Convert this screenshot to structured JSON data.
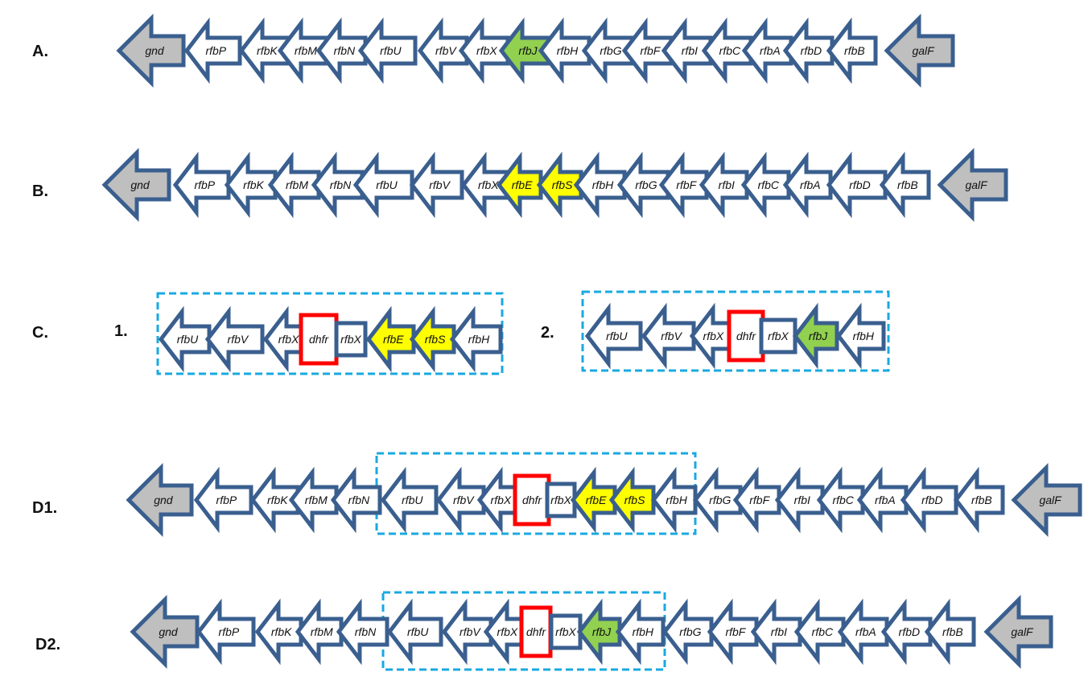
{
  "colors": {
    "outline": "#3a5f8f",
    "white": "#ffffff",
    "gray": "#bfbfbf",
    "green": "#92d050",
    "yellow": "#ffff00",
    "red": "#ff0000",
    "dashed": "#19a9e0"
  },
  "rows": [
    {
      "id": "A",
      "label": "A.",
      "genes": [
        {
          "name": "gnd",
          "fill": "gray"
        },
        {
          "name": "rfbP",
          "fill": "white"
        },
        {
          "name": "rfbK",
          "fill": "white"
        },
        {
          "name": "rfbM",
          "fill": "white"
        },
        {
          "name": "rfbN",
          "fill": "white"
        },
        {
          "name": "rfbU",
          "fill": "white"
        },
        {
          "name": "rfbV",
          "fill": "white"
        },
        {
          "name": "rfbX",
          "fill": "white"
        },
        {
          "name": "rfbJ",
          "fill": "green"
        },
        {
          "name": "rfbH",
          "fill": "white"
        },
        {
          "name": "rfbG",
          "fill": "white"
        },
        {
          "name": "rfbF",
          "fill": "white"
        },
        {
          "name": "rfbI",
          "fill": "white"
        },
        {
          "name": "rfbC",
          "fill": "white"
        },
        {
          "name": "rfbA",
          "fill": "white"
        },
        {
          "name": "rfbD",
          "fill": "white"
        },
        {
          "name": "rfbB",
          "fill": "white"
        },
        {
          "name": "galF",
          "fill": "gray"
        }
      ]
    },
    {
      "id": "B",
      "label": "B.",
      "genes": [
        {
          "name": "gnd",
          "fill": "gray"
        },
        {
          "name": "rfbP",
          "fill": "white"
        },
        {
          "name": "rfbK",
          "fill": "white"
        },
        {
          "name": "rfbM",
          "fill": "white"
        },
        {
          "name": "rfbN",
          "fill": "white"
        },
        {
          "name": "rfbU",
          "fill": "white"
        },
        {
          "name": "rfbV",
          "fill": "white"
        },
        {
          "name": "rfbX",
          "fill": "white"
        },
        {
          "name": "rfbE",
          "fill": "yellow"
        },
        {
          "name": "rfbS",
          "fill": "yellow"
        },
        {
          "name": "rfbH",
          "fill": "white"
        },
        {
          "name": "rfbG",
          "fill": "white"
        },
        {
          "name": "rfbF",
          "fill": "white"
        },
        {
          "name": "rfbI",
          "fill": "white"
        },
        {
          "name": "rfbC",
          "fill": "white"
        },
        {
          "name": "rfbA",
          "fill": "white"
        },
        {
          "name": "rfbD",
          "fill": "white"
        },
        {
          "name": "rfbB",
          "fill": "white"
        },
        {
          "name": "galF",
          "fill": "gray"
        }
      ]
    },
    {
      "id": "C",
      "label": "C.",
      "sub_labels": [
        "1.",
        "2."
      ],
      "panel1": [
        {
          "name": "rfbU",
          "fill": "white"
        },
        {
          "name": "rfbV",
          "fill": "white"
        },
        {
          "name": "rfbX",
          "fill": "white"
        },
        {
          "name": "dhfr",
          "fill": "white",
          "shape": "box"
        },
        {
          "name": "rfbX",
          "fill": "white",
          "shape": "box"
        },
        {
          "name": "rfbE",
          "fill": "yellow"
        },
        {
          "name": "rfbS",
          "fill": "yellow"
        },
        {
          "name": "rfbH",
          "fill": "white"
        }
      ],
      "panel2": [
        {
          "name": "rfbU",
          "fill": "white"
        },
        {
          "name": "rfbV",
          "fill": "white"
        },
        {
          "name": "rfbX",
          "fill": "white"
        },
        {
          "name": "dhfr",
          "fill": "white",
          "shape": "box"
        },
        {
          "name": "rfbX",
          "fill": "white",
          "shape": "box"
        },
        {
          "name": "rfbJ",
          "fill": "green"
        },
        {
          "name": "rfbH",
          "fill": "white"
        }
      ]
    },
    {
      "id": "D1",
      "label": "D1.",
      "genes": [
        {
          "name": "gnd",
          "fill": "gray"
        },
        {
          "name": "rfbP",
          "fill": "white"
        },
        {
          "name": "rfbK",
          "fill": "white"
        },
        {
          "name": "rfbM",
          "fill": "white"
        },
        {
          "name": "rfbN",
          "fill": "white"
        },
        {
          "name": "rfbU",
          "fill": "white"
        },
        {
          "name": "rfbV",
          "fill": "white"
        },
        {
          "name": "rfbX",
          "fill": "white"
        },
        {
          "name": "dhfr",
          "fill": "white",
          "shape": "box"
        },
        {
          "name": "rfbX",
          "fill": "white",
          "shape": "box"
        },
        {
          "name": "rfbE",
          "fill": "yellow"
        },
        {
          "name": "rfbS",
          "fill": "yellow"
        },
        {
          "name": "rfbH",
          "fill": "white"
        },
        {
          "name": "rfbG",
          "fill": "white"
        },
        {
          "name": "rfbF",
          "fill": "white"
        },
        {
          "name": "rfbI",
          "fill": "white"
        },
        {
          "name": "rfbC",
          "fill": "white"
        },
        {
          "name": "rfbA",
          "fill": "white"
        },
        {
          "name": "rfbD",
          "fill": "white"
        },
        {
          "name": "rfbB",
          "fill": "white"
        },
        {
          "name": "galF",
          "fill": "gray"
        }
      ]
    },
    {
      "id": "D2",
      "label": "D2.",
      "genes": [
        {
          "name": "gnd",
          "fill": "gray"
        },
        {
          "name": "rfbP",
          "fill": "white"
        },
        {
          "name": "rfbK",
          "fill": "white"
        },
        {
          "name": "rfbM",
          "fill": "white"
        },
        {
          "name": "rfbN",
          "fill": "white"
        },
        {
          "name": "rfbU",
          "fill": "white"
        },
        {
          "name": "rfbV",
          "fill": "white"
        },
        {
          "name": "rfbX",
          "fill": "white"
        },
        {
          "name": "dhfr",
          "fill": "white",
          "shape": "box"
        },
        {
          "name": "rfbX",
          "fill": "white",
          "shape": "box"
        },
        {
          "name": "rfbJ",
          "fill": "green"
        },
        {
          "name": "rfbH",
          "fill": "white"
        },
        {
          "name": "rfbG",
          "fill": "white"
        },
        {
          "name": "rfbF",
          "fill": "white"
        },
        {
          "name": "rfbI",
          "fill": "white"
        },
        {
          "name": "rfbC",
          "fill": "white"
        },
        {
          "name": "rfbA",
          "fill": "white"
        },
        {
          "name": "rfbD",
          "fill": "white"
        },
        {
          "name": "rfbB",
          "fill": "white"
        },
        {
          "name": "galF",
          "fill": "gray"
        }
      ]
    }
  ]
}
